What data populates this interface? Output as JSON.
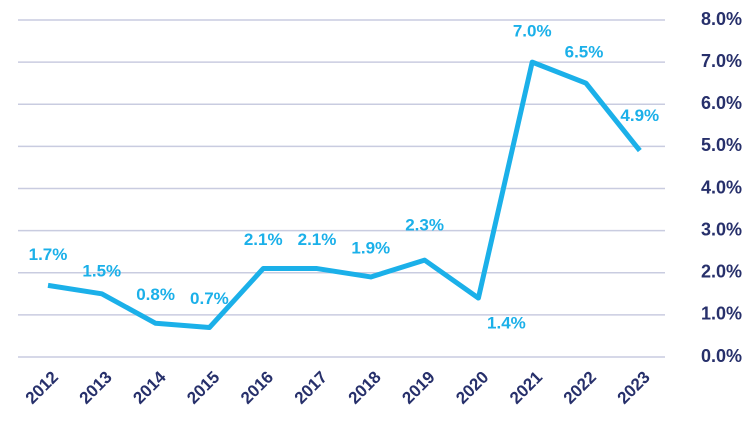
{
  "chart_data": {
    "type": "line",
    "categories": [
      "2012",
      "2013",
      "2014",
      "2015",
      "2016",
      "2017",
      "2018",
      "2019",
      "2020",
      "2021",
      "2022",
      "2023"
    ],
    "values": [
      1.7,
      1.5,
      0.8,
      0.7,
      2.1,
      2.1,
      1.9,
      2.3,
      1.4,
      7.0,
      6.5,
      4.9
    ],
    "value_labels": [
      "1.7%",
      "1.5%",
      "0.8%",
      "0.7%",
      "2.1%",
      "2.1%",
      "1.9%",
      "2.3%",
      "1.4%",
      "7.0%",
      "6.5%",
      "4.9%"
    ],
    "color": "#1bb0e9",
    "ylim": [
      0,
      8
    ],
    "yticks": [
      {
        "value": 0,
        "label": "0.0%"
      },
      {
        "value": 1,
        "label": "1.0%"
      },
      {
        "value": 2,
        "label": "2.0%"
      },
      {
        "value": 3,
        "label": "3.0%"
      },
      {
        "value": 4,
        "label": "4.0%"
      },
      {
        "value": 5,
        "label": "5.0%"
      },
      {
        "value": 6,
        "label": "6.0%"
      },
      {
        "value": 7,
        "label": "7.0%"
      },
      {
        "value": 8,
        "label": "8.0%"
      }
    ],
    "grid": true
  }
}
